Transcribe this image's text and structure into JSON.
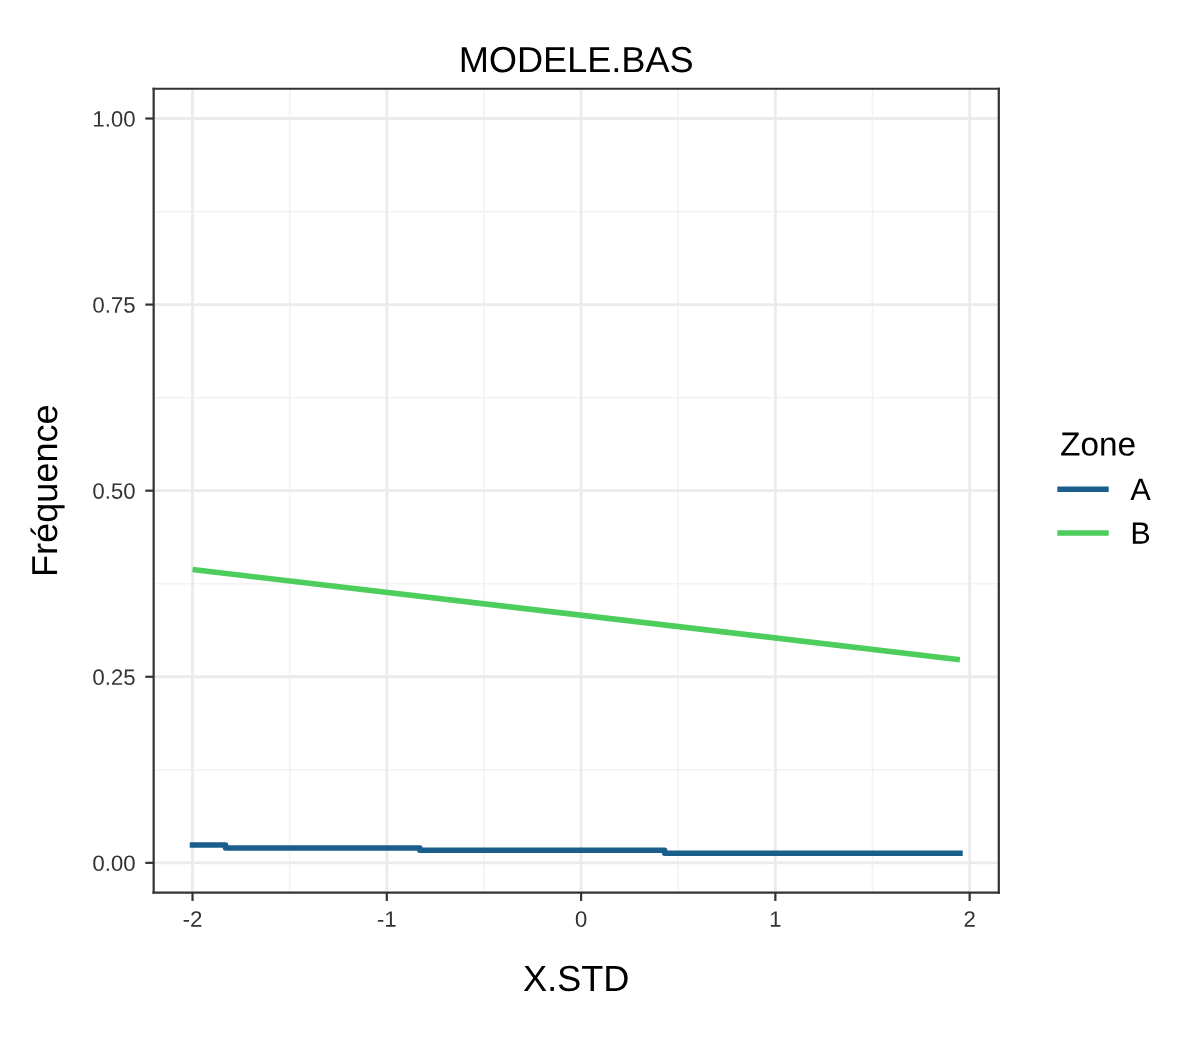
{
  "chart_data": {
    "type": "line",
    "title": "MODELE.BAS",
    "xlabel": "X.STD",
    "ylabel": "Fréquence",
    "legend_title": "Zone",
    "legend": "right",
    "grid": true,
    "xlim": [
      -2.2,
      2.15
    ],
    "ylim": [
      -0.04,
      1.04
    ],
    "xticks": [
      -2,
      -1,
      0,
      1,
      2
    ],
    "yticks": [
      {
        "value": 0,
        "label": "0.00"
      },
      {
        "value": 0.25,
        "label": "0.25"
      },
      {
        "value": 0.5,
        "label": "0.50"
      },
      {
        "value": 0.75,
        "label": "0.75"
      },
      {
        "value": 1,
        "label": "1.00"
      }
    ],
    "series": [
      {
        "name": "A",
        "color": "#1b5e8c",
        "type": "step",
        "x": [
          -2,
          -1.83,
          -0.83,
          0.43,
          1.95
        ],
        "values": [
          0.024,
          0.02,
          0.017,
          0.013,
          0.013
        ]
      },
      {
        "name": "B",
        "color": "#4ccd5c",
        "x": [
          -2,
          1.95
        ],
        "values": [
          0.394,
          0.273
        ]
      }
    ]
  }
}
